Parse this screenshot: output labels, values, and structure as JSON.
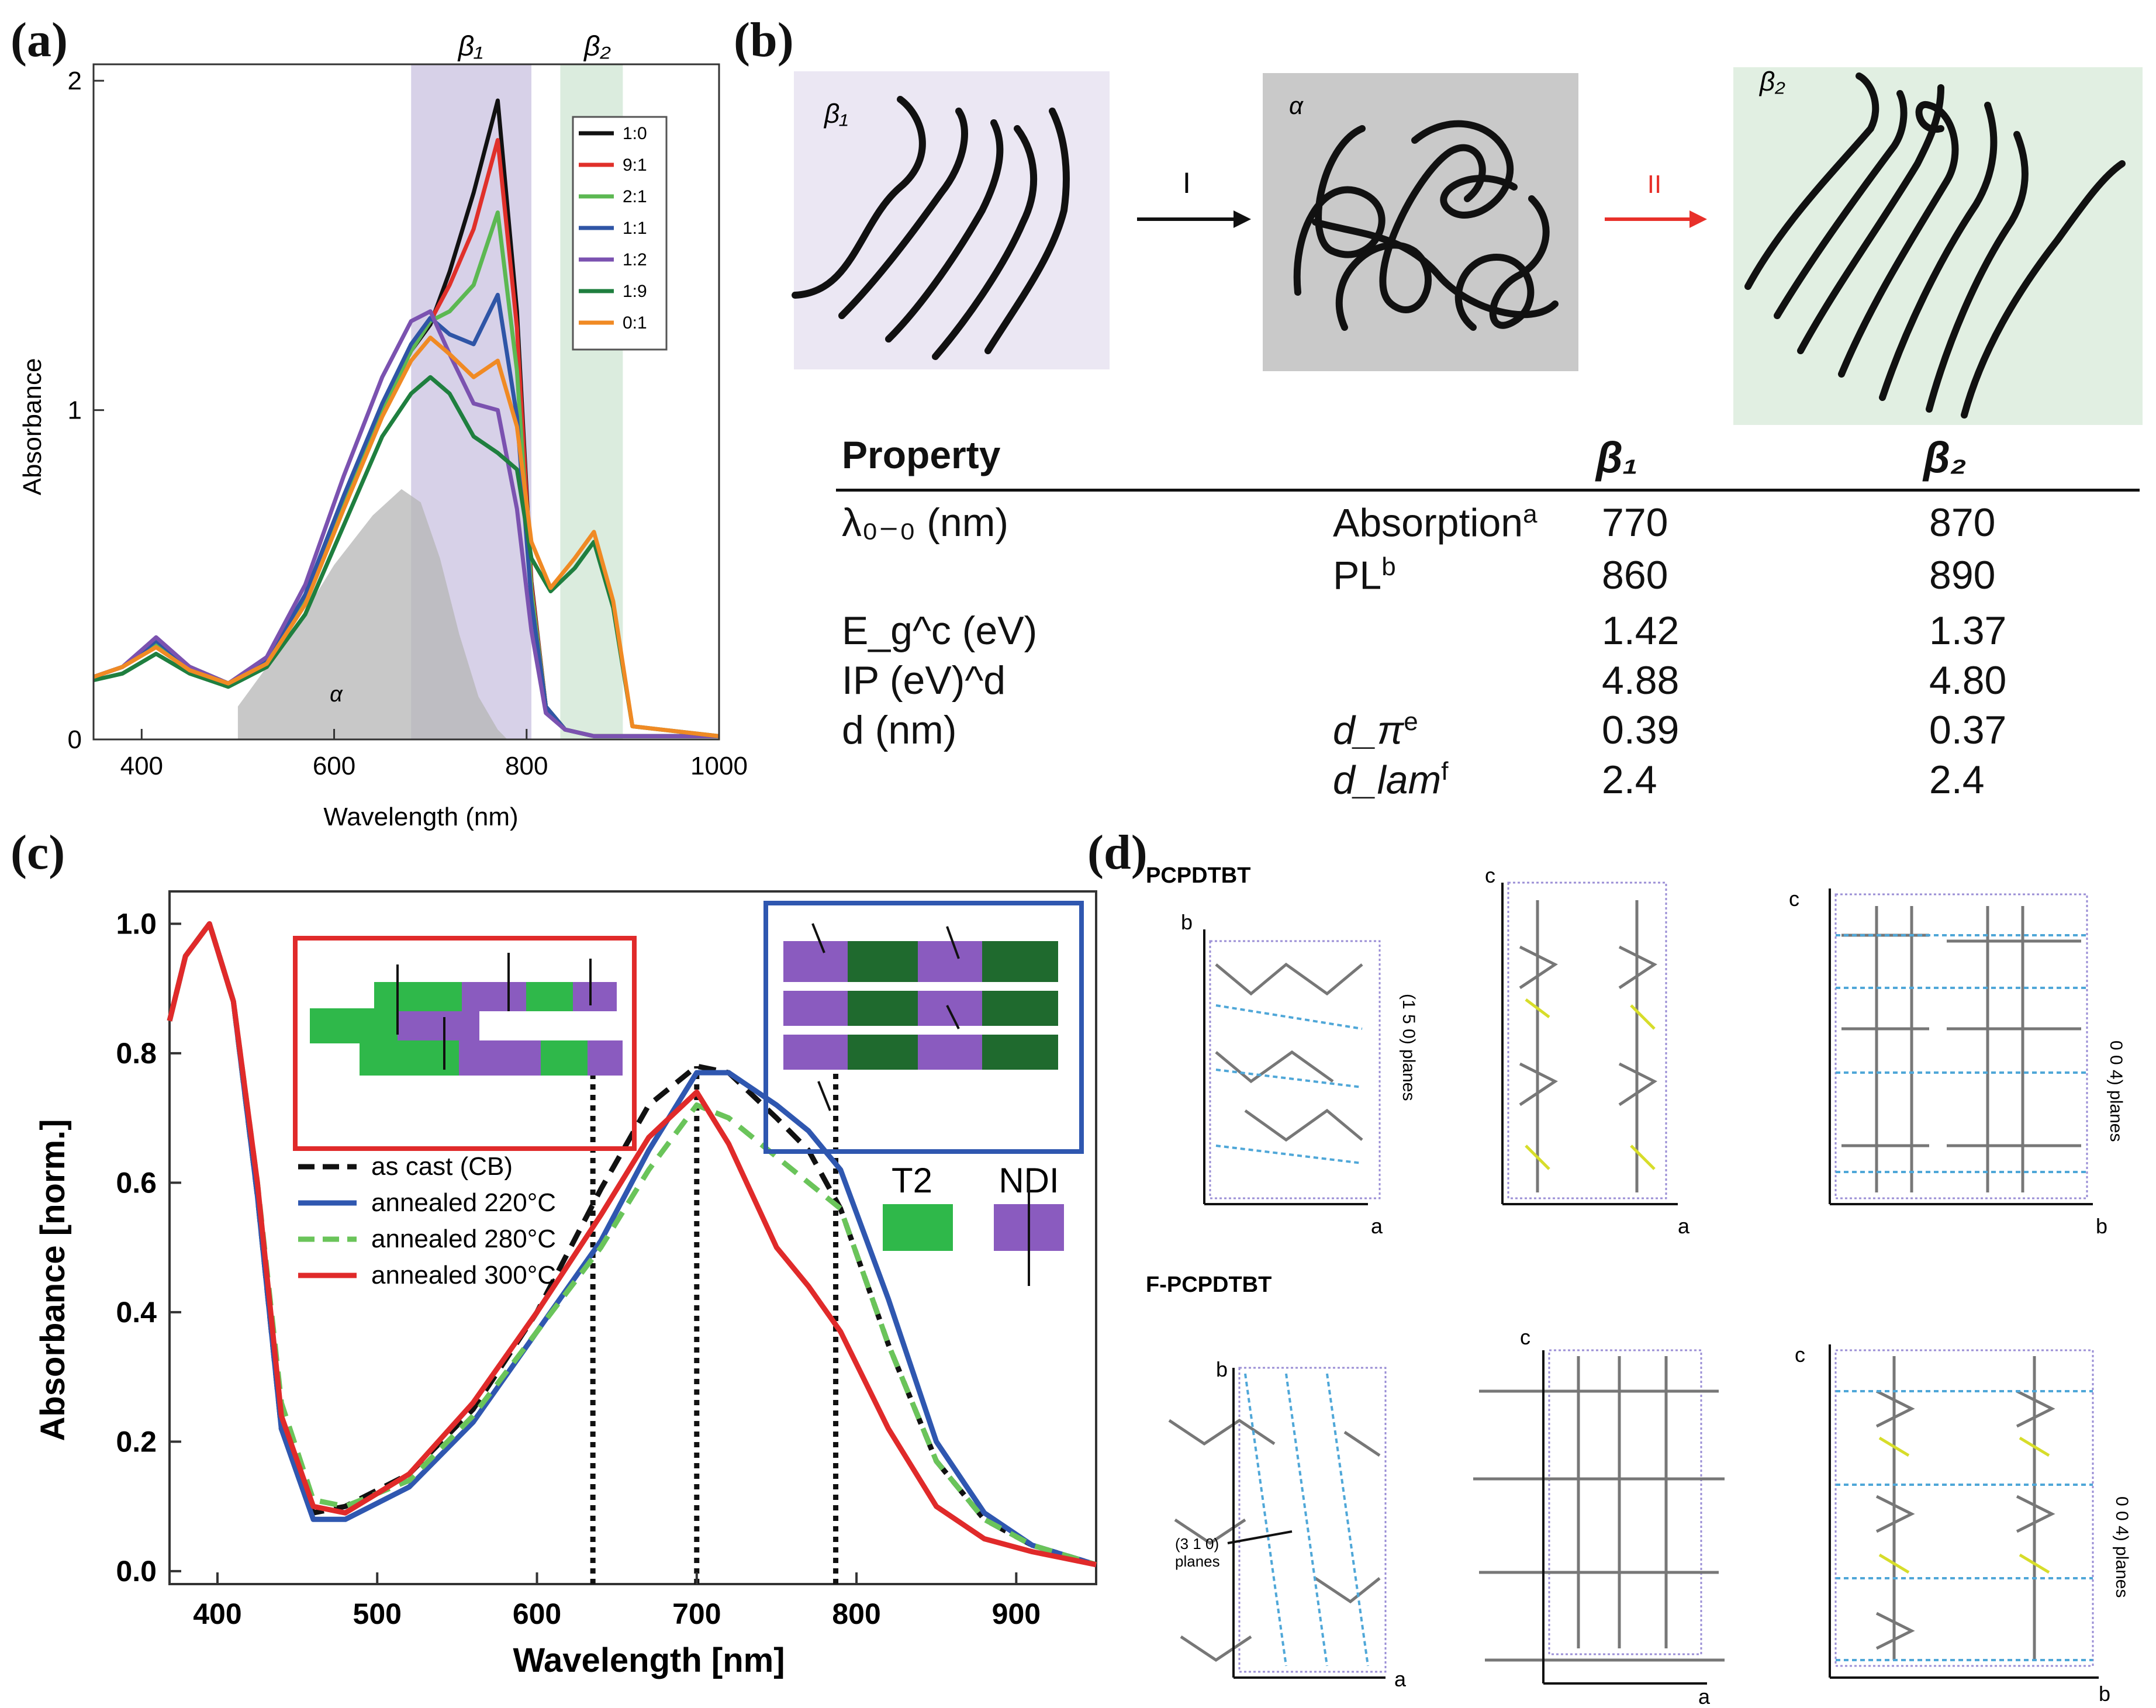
{
  "panels": {
    "a": "(a)",
    "b": "(b)",
    "c": "(c)",
    "d": "(d)"
  },
  "chart_data": [
    {
      "type": "line",
      "panel": "(a)",
      "xlabel": "Wavelength (nm)",
      "ylabel": "Absorbance",
      "xlim": [
        350,
        1000
      ],
      "ylim": [
        0,
        2.05
      ],
      "xticks": [
        400,
        600,
        800,
        1000
      ],
      "yticks": [
        0,
        1,
        2
      ],
      "bands": [
        {
          "label": "β₁",
          "range": [
            680,
            805
          ],
          "color": "#c9c2e0"
        },
        {
          "label": "β₂",
          "range": [
            835,
            900
          ],
          "color": "#cfe6d3"
        }
      ],
      "alpha_label": "α",
      "alpha_fill": {
        "x": [
          500,
          560,
          600,
          640,
          670,
          690,
          710,
          730,
          750,
          770,
          780
        ],
        "y": [
          0.1,
          0.34,
          0.53,
          0.68,
          0.76,
          0.72,
          0.55,
          0.32,
          0.13,
          0.03,
          0.0
        ]
      },
      "series": [
        {
          "name": "1:0",
          "color": "#111111",
          "x": [
            350,
            380,
            415,
            450,
            490,
            530,
            570,
            610,
            650,
            680,
            700,
            720,
            745,
            770,
            790,
            805,
            820,
            840,
            870,
            900,
            1000
          ],
          "y": [
            0.19,
            0.22,
            0.29,
            0.22,
            0.17,
            0.24,
            0.43,
            0.72,
            1.0,
            1.18,
            1.26,
            1.42,
            1.66,
            1.94,
            1.3,
            0.48,
            0.1,
            0.03,
            0.01,
            0.01,
            0.01
          ]
        },
        {
          "name": "9:1",
          "color": "#e0302a",
          "x": [
            350,
            380,
            415,
            450,
            490,
            530,
            570,
            610,
            650,
            680,
            700,
            720,
            745,
            770,
            790,
            805,
            820,
            840,
            870,
            900,
            1000
          ],
          "y": [
            0.19,
            0.22,
            0.29,
            0.22,
            0.17,
            0.24,
            0.43,
            0.72,
            1.0,
            1.18,
            1.27,
            1.38,
            1.55,
            1.82,
            1.25,
            0.47,
            0.1,
            0.03,
            0.01,
            0.01,
            0.01
          ]
        },
        {
          "name": "2:1",
          "color": "#5cb852",
          "x": [
            350,
            380,
            415,
            450,
            490,
            530,
            570,
            610,
            650,
            680,
            700,
            720,
            745,
            770,
            790,
            805,
            820,
            840,
            870,
            900,
            1000
          ],
          "y": [
            0.19,
            0.22,
            0.29,
            0.22,
            0.17,
            0.24,
            0.43,
            0.72,
            1.0,
            1.18,
            1.27,
            1.3,
            1.38,
            1.6,
            1.12,
            0.45,
            0.1,
            0.03,
            0.01,
            0.01,
            0.01
          ]
        },
        {
          "name": "1:1",
          "color": "#2f55a6",
          "x": [
            350,
            380,
            415,
            450,
            490,
            530,
            570,
            610,
            650,
            680,
            700,
            720,
            745,
            770,
            790,
            805,
            820,
            840,
            870,
            900,
            1000
          ],
          "y": [
            0.19,
            0.22,
            0.3,
            0.22,
            0.17,
            0.24,
            0.44,
            0.74,
            1.02,
            1.2,
            1.28,
            1.23,
            1.2,
            1.35,
            0.98,
            0.42,
            0.1,
            0.03,
            0.01,
            0.01,
            0.01
          ]
        },
        {
          "name": "1:2",
          "color": "#7b52b0",
          "x": [
            350,
            380,
            415,
            450,
            490,
            530,
            570,
            610,
            650,
            680,
            700,
            720,
            745,
            770,
            790,
            805,
            820,
            840,
            870,
            900,
            1000
          ],
          "y": [
            0.19,
            0.22,
            0.31,
            0.22,
            0.17,
            0.25,
            0.47,
            0.8,
            1.1,
            1.27,
            1.3,
            1.17,
            1.02,
            1.0,
            0.7,
            0.33,
            0.08,
            0.03,
            0.01,
            0.01,
            0.01
          ]
        },
        {
          "name": "1:9",
          "color": "#1f7f3f",
          "x": [
            350,
            380,
            415,
            450,
            490,
            530,
            570,
            610,
            650,
            680,
            700,
            720,
            745,
            770,
            790,
            805,
            825,
            850,
            870,
            890,
            910,
            1000
          ],
          "y": [
            0.18,
            0.2,
            0.26,
            0.2,
            0.16,
            0.22,
            0.38,
            0.65,
            0.92,
            1.05,
            1.1,
            1.05,
            0.92,
            0.87,
            0.82,
            0.55,
            0.45,
            0.52,
            0.6,
            0.4,
            0.04,
            0.01
          ]
        },
        {
          "name": "0:1",
          "color": "#f08a24",
          "x": [
            350,
            380,
            415,
            450,
            490,
            530,
            570,
            610,
            650,
            680,
            700,
            720,
            745,
            770,
            790,
            805,
            825,
            850,
            870,
            890,
            910,
            1000
          ],
          "y": [
            0.19,
            0.22,
            0.28,
            0.21,
            0.17,
            0.23,
            0.41,
            0.7,
            0.98,
            1.15,
            1.22,
            1.17,
            1.1,
            1.15,
            0.95,
            0.6,
            0.46,
            0.55,
            0.63,
            0.42,
            0.04,
            0.01
          ]
        }
      ]
    },
    {
      "type": "line",
      "panel": "(c)",
      "xlabel": "Wavelength [nm]",
      "ylabel": "Absorbance [norm.]",
      "xlim": [
        370,
        950
      ],
      "ylim": [
        -0.02,
        1.05
      ],
      "xticks": [
        400,
        500,
        600,
        700,
        800,
        900
      ],
      "yticks": [
        0.0,
        0.2,
        0.4,
        0.6,
        0.8,
        1.0
      ],
      "vlines": [
        635,
        700,
        787
      ],
      "series": [
        {
          "name": "as cast (CB)",
          "color": "#111111",
          "style": "dashed",
          "x": [
            370,
            380,
            395,
            410,
            425,
            440,
            460,
            480,
            520,
            560,
            600,
            640,
            670,
            700,
            720,
            750,
            770,
            790,
            820,
            850,
            880,
            910,
            950
          ],
          "y": [
            0.85,
            0.95,
            1.0,
            0.88,
            0.58,
            0.22,
            0.09,
            0.1,
            0.15,
            0.25,
            0.4,
            0.59,
            0.72,
            0.78,
            0.77,
            0.7,
            0.65,
            0.56,
            0.35,
            0.17,
            0.08,
            0.04,
            0.01
          ]
        },
        {
          "name": "annealed 220°C",
          "color": "#2f57b0",
          "style": "solid",
          "x": [
            370,
            380,
            395,
            410,
            425,
            440,
            460,
            480,
            520,
            560,
            600,
            640,
            670,
            700,
            720,
            750,
            770,
            790,
            820,
            850,
            880,
            910,
            950
          ],
          "y": [
            0.85,
            0.95,
            1.0,
            0.88,
            0.58,
            0.22,
            0.08,
            0.08,
            0.13,
            0.23,
            0.37,
            0.51,
            0.65,
            0.77,
            0.77,
            0.72,
            0.68,
            0.62,
            0.42,
            0.2,
            0.09,
            0.04,
            0.01
          ]
        },
        {
          "name": "annealed 280°C",
          "color": "#6ac45a",
          "style": "dashed",
          "x": [
            370,
            380,
            395,
            410,
            425,
            440,
            460,
            480,
            520,
            560,
            600,
            640,
            670,
            700,
            720,
            750,
            770,
            790,
            820,
            850,
            880,
            910,
            950
          ],
          "y": [
            0.85,
            0.95,
            1.0,
            0.88,
            0.6,
            0.26,
            0.11,
            0.1,
            0.14,
            0.24,
            0.37,
            0.5,
            0.62,
            0.72,
            0.7,
            0.64,
            0.6,
            0.56,
            0.35,
            0.17,
            0.08,
            0.04,
            0.01
          ]
        },
        {
          "name": "annealed 300°C",
          "color": "#e02a2a",
          "style": "solid",
          "x": [
            370,
            380,
            395,
            410,
            425,
            440,
            460,
            480,
            520,
            560,
            600,
            640,
            670,
            700,
            720,
            750,
            770,
            790,
            820,
            850,
            880,
            910,
            950
          ],
          "y": [
            0.85,
            0.95,
            1.0,
            0.88,
            0.6,
            0.24,
            0.1,
            0.09,
            0.15,
            0.26,
            0.4,
            0.55,
            0.67,
            0.74,
            0.66,
            0.5,
            0.44,
            0.37,
            0.22,
            0.1,
            0.05,
            0.03,
            0.01
          ]
        }
      ],
      "material_legend": {
        "t2": "T2",
        "ndi": "NDI",
        "t2_color": "#2fb84a",
        "ndi_color": "#8a5bbf"
      }
    }
  ],
  "schematic": {
    "beta1_label": "β₁",
    "alpha_label": "α",
    "beta2_label": "β₂",
    "arrow1_label": "I",
    "arrow2_label": "II"
  },
  "property_table": {
    "header": {
      "property": "Property",
      "b1": "β₁",
      "b2": "β₂"
    },
    "rows": [
      {
        "prop": "λ₀₋₀ (nm)",
        "sub": "Absorption",
        "sup": "a",
        "b1": "770",
        "b2": "870"
      },
      {
        "prop": "",
        "sub": "PL",
        "sup": "b",
        "b1": "860",
        "b2": "890"
      },
      {
        "prop": "E_g^c (eV)",
        "sub": "",
        "sup": "",
        "b1": "1.42",
        "b2": "1.37"
      },
      {
        "prop": "IP (eV)^d",
        "sub": "",
        "sup": "",
        "b1": "4.88",
        "b2": "4.80"
      },
      {
        "prop": "d (nm)",
        "sub": "d_π",
        "sup": "e",
        "b1": "0.39",
        "b2": "0.37"
      },
      {
        "prop": "",
        "sub": "d_lam",
        "sup": "f",
        "b1": "2.4",
        "b2": "2.4"
      }
    ]
  },
  "crystal": {
    "title1": "PCPDTBT",
    "title2": "F-PCPDTBT",
    "plane_150": "(1 5 0) planes",
    "plane_004": "0 0 4) planes",
    "plane_310": "(3 1 0)",
    "planes_word": "planes",
    "axis_a": "a",
    "axis_b": "b",
    "axis_c": "c"
  }
}
